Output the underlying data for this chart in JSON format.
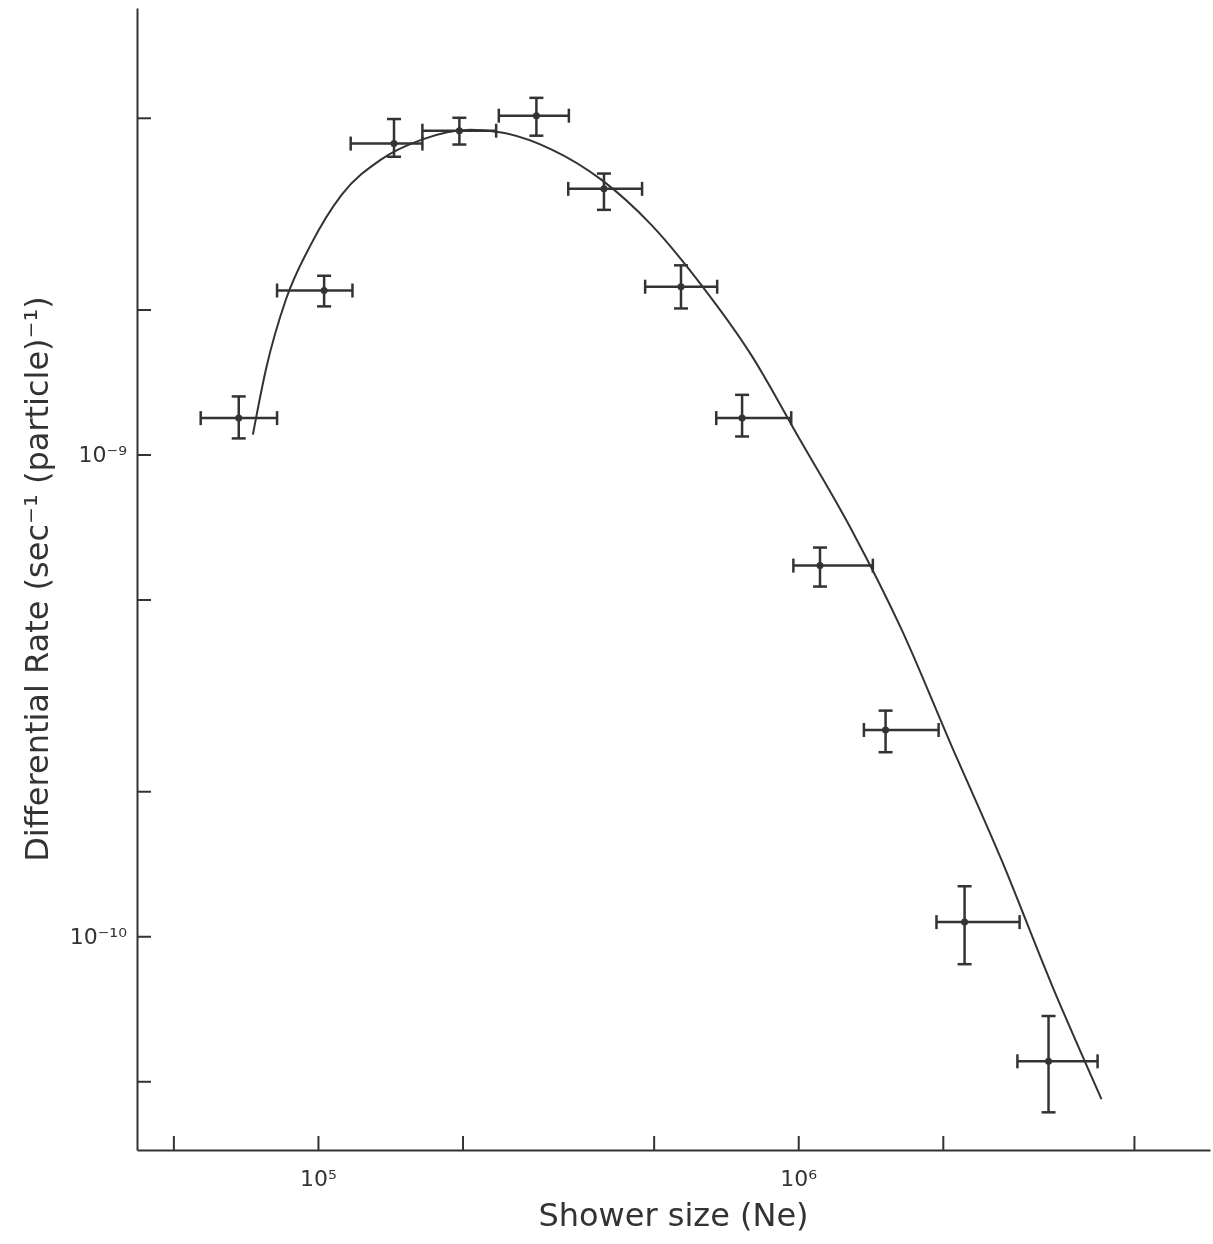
{
  "chart_data": {
    "type": "scatter",
    "xlabel": "Shower size (Ne)",
    "ylabel": "Differential Rate (sec⁻¹ (particle)⁻¹)",
    "log": "xy",
    "grid": false,
    "xlim": [
      42000,
      7200000
    ],
    "ylim": [
      3.6e-11,
      8.45e-09
    ],
    "xticks": [
      {
        "value": 50000,
        "label": null
      },
      {
        "value": 100000,
        "label": "10⁵"
      },
      {
        "value": 200000,
        "label": null
      },
      {
        "value": 500000,
        "label": null
      },
      {
        "value": 1000000,
        "label": "10⁶"
      },
      {
        "value": 2000000,
        "label": null
      },
      {
        "value": 5000000,
        "label": null
      }
    ],
    "yticks": [
      {
        "value": 5e-11,
        "label": null
      },
      {
        "value": 1e-10,
        "label": "10⁻¹⁰"
      },
      {
        "value": 2e-10,
        "label": null
      },
      {
        "value": 5e-10,
        "label": null
      },
      {
        "value": 1e-09,
        "label": "10⁻⁹"
      },
      {
        "value": 2e-09,
        "label": null
      },
      {
        "value": 5e-09,
        "label": null
      }
    ],
    "series": [
      {
        "color": "#333333",
        "x": [
          68400,
          103000,
          144000,
          197000,
          285000,
          394000,
          570000,
          764000,
          1110000,
          1520000,
          2220000,
          3320000
        ],
        "values": [
          1.19e-09,
          2.19e-09,
          4.42e-09,
          4.7e-09,
          5.05e-09,
          3.56e-09,
          2.23e-09,
          1.19e-09,
          5.88e-10,
          2.68e-10,
          1.07e-10,
          5.5e-11
        ],
        "errors": [
          [
            1.08e-09,
            1.32e-09
          ],
          [
            2.03e-09,
            2.35e-09
          ],
          [
            4.15e-09,
            4.97e-09
          ],
          [
            4.4e-09,
            5e-09
          ],
          [
            4.59e-09,
            5.5e-09
          ],
          [
            3.22e-09,
            3.83e-09
          ],
          [
            2.01e-09,
            2.47e-09
          ],
          [
            1.09e-09,
            1.33e-09
          ],
          [
            5.32e-10,
            6.41e-10
          ],
          [
            2.41e-10,
            2.94e-10
          ],
          [
            8.75e-11,
            1.27e-10
          ],
          [
            4.31e-11,
            6.83e-11
          ]
        ],
        "xerrors": [
          [
            57000,
            82200
          ],
          [
            82200,
            118000
          ],
          [
            117000,
            165000
          ],
          [
            165000,
            235000
          ],
          [
            238000,
            333000
          ],
          [
            332000,
            473000
          ],
          [
            480000,
            678000
          ],
          [
            675000,
            967000
          ],
          [
            977000,
            1430000
          ],
          [
            1370000,
            1960000
          ],
          [
            1940000,
            2890000
          ],
          [
            2860000,
            4200000
          ]
        ]
      },
      {
        "type": "line",
        "color": "#333333",
        "x": [
          73200,
          77900,
          85800,
          96700,
          112000,
          135000,
          164000,
          208000,
          241000,
          306000,
          389000,
          494000,
          628000,
          798000,
          1010000,
          1290000,
          1640000,
          2080000,
          2650000,
          3370000,
          4280000
        ],
        "values": [
          1.1e-09,
          1.5e-09,
          2.1e-09,
          2.73e-09,
          3.46e-09,
          4.09e-09,
          4.5e-09,
          4.72e-09,
          4.66e-09,
          4.3e-09,
          3.72e-09,
          3e-09,
          2.25e-09,
          1.61e-09,
          1.07e-09,
          6.99e-10,
          4.34e-10,
          2.5e-10,
          1.44e-10,
          7.94e-11,
          4.59e-11
        ]
      }
    ]
  }
}
